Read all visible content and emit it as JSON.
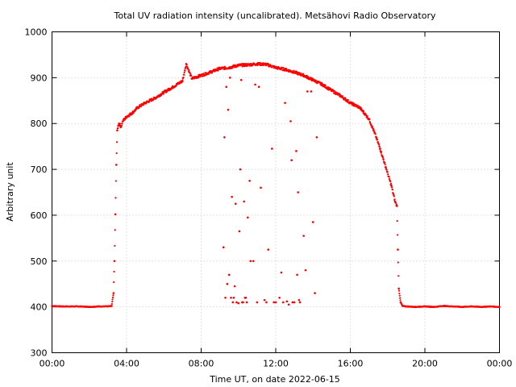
{
  "chart_data": {
    "type": "scatter",
    "title": "Total UV radiation intensity (uncalibrated). Metsähovi Radio Observatory",
    "xlabel": "Time UT, on date 2022-06-15",
    "ylabel": "Arbitrary unit",
    "xlim": [
      0,
      24
    ],
    "ylim": [
      300,
      1000
    ],
    "x_unit": "hours UT",
    "xticks": [
      0,
      4,
      8,
      12,
      16,
      20,
      24
    ],
    "xtick_labels": [
      "00:00",
      "04:00",
      "08:00",
      "12:00",
      "16:00",
      "20:00",
      "00:00"
    ],
    "yticks": [
      300,
      400,
      500,
      600,
      700,
      800,
      900,
      1000
    ],
    "ytick_labels": [
      "300",
      "400",
      "500",
      "600",
      "700",
      "800",
      "900",
      "1000"
    ],
    "grid": true,
    "legend": "none",
    "marker_color": "#ff0000",
    "series": [
      {
        "x": [
          0.0,
          0.5,
          1.0,
          1.5,
          2.0,
          2.5,
          3.0,
          3.2,
          3.3,
          3.35,
          3.4,
          3.45,
          3.5,
          3.55,
          3.6,
          3.7,
          3.8,
          4.0,
          4.3,
          4.6,
          5.0,
          5.5,
          6.0,
          6.5,
          7.0,
          7.2,
          7.5,
          8.0,
          8.5,
          9.0,
          9.5,
          10.0,
          10.5,
          11.0,
          11.5,
          12.0,
          12.5,
          13.0,
          13.5,
          14.0,
          14.5,
          15.0,
          15.5,
          16.0,
          16.5,
          17.0,
          17.3,
          17.6,
          17.9,
          18.2,
          18.4,
          18.5,
          18.55,
          18.6,
          18.7,
          18.8,
          19.0,
          19.5,
          20.0,
          20.5,
          21.0,
          21.5,
          22.0,
          22.5,
          23.0,
          23.5,
          24.0
        ],
        "y": [
          402,
          401,
          401,
          401,
          400,
          401,
          401,
          402,
          430,
          500,
          602,
          710,
          785,
          795,
          800,
          793,
          805,
          815,
          823,
          835,
          845,
          855,
          868,
          880,
          893,
          930,
          898,
          905,
          912,
          920,
          922,
          927,
          928,
          930,
          929,
          922,
          918,
          912,
          905,
          895,
          885,
          872,
          860,
          845,
          835,
          810,
          780,
          745,
          705,
          665,
          630,
          620,
          525,
          440,
          410,
          402,
          401,
          400,
          401,
          400,
          402,
          401,
          400,
          401,
          400,
          401,
          400
        ]
      },
      {
        "x": [
          9.2,
          9.3,
          9.4,
          9.5,
          9.6,
          9.7,
          9.8,
          9.9,
          10.0,
          10.1,
          10.2,
          10.3,
          10.4,
          10.5,
          10.6,
          10.8,
          11.0,
          11.2,
          11.4,
          11.6,
          11.8,
          12.0,
          12.3,
          12.5,
          12.6,
          12.8,
          12.9,
          13.0,
          13.1,
          13.2,
          13.3,
          13.5,
          13.7,
          14.0,
          14.2,
          9.25,
          9.45,
          9.65,
          9.85,
          10.05,
          10.25,
          10.45,
          10.65,
          10.9,
          11.5,
          11.9,
          12.2,
          12.7,
          13.15,
          13.6,
          14.1,
          9.35,
          9.55,
          9.75,
          10.15,
          10.35,
          11.1,
          12.4,
          12.85,
          13.25,
          13.9
        ],
        "y": [
          530,
          420,
          450,
          470,
          420,
          410,
          445,
          410,
          408,
          700,
          410,
          630,
          420,
          595,
          675,
          500,
          410,
          660,
          415,
          525,
          745,
          410,
          475,
          845,
          412,
          805,
          410,
          410,
          740,
          650,
          410,
          555,
          870,
          585,
          770,
          770,
          830,
          640,
          625,
          565,
          410,
          410,
          500,
          885,
          410,
          410,
          420,
          405,
          470,
          480,
          430,
          880,
          900,
          420,
          895,
          420,
          880,
          410,
          720,
          415,
          870
        ]
      }
    ]
  }
}
